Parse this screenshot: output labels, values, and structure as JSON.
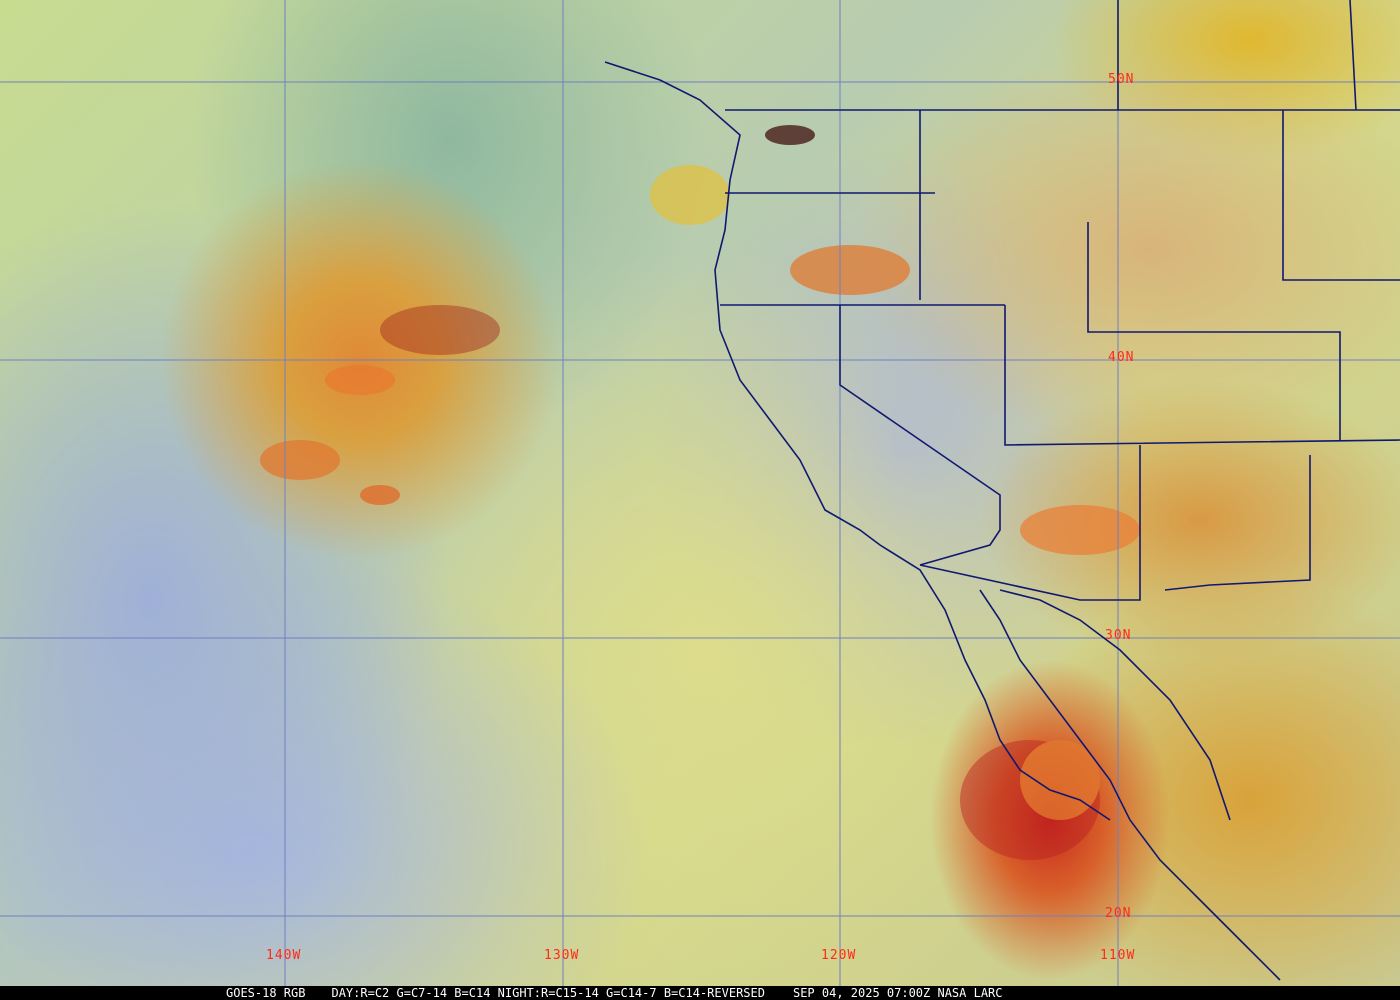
{
  "grid": {
    "lon_labels": [
      "140W",
      "130W",
      "120W",
      "110W"
    ],
    "lat_labels": [
      "50N",
      "40N",
      "30N",
      "20N"
    ]
  },
  "caption": {
    "satellite": "GOES-18 RGB",
    "recipe": "DAY:R=C2 G=C7-14 B=C14 NIGHT:R=C15-14 G=C14-7 B=C14-REVERSED",
    "datetime": "SEP 04, 2025 07:00Z",
    "credit": "NASA LARC"
  },
  "colors": {
    "grid": "#7080c0",
    "borders": "#101870",
    "labels": "#ff2a1a"
  }
}
